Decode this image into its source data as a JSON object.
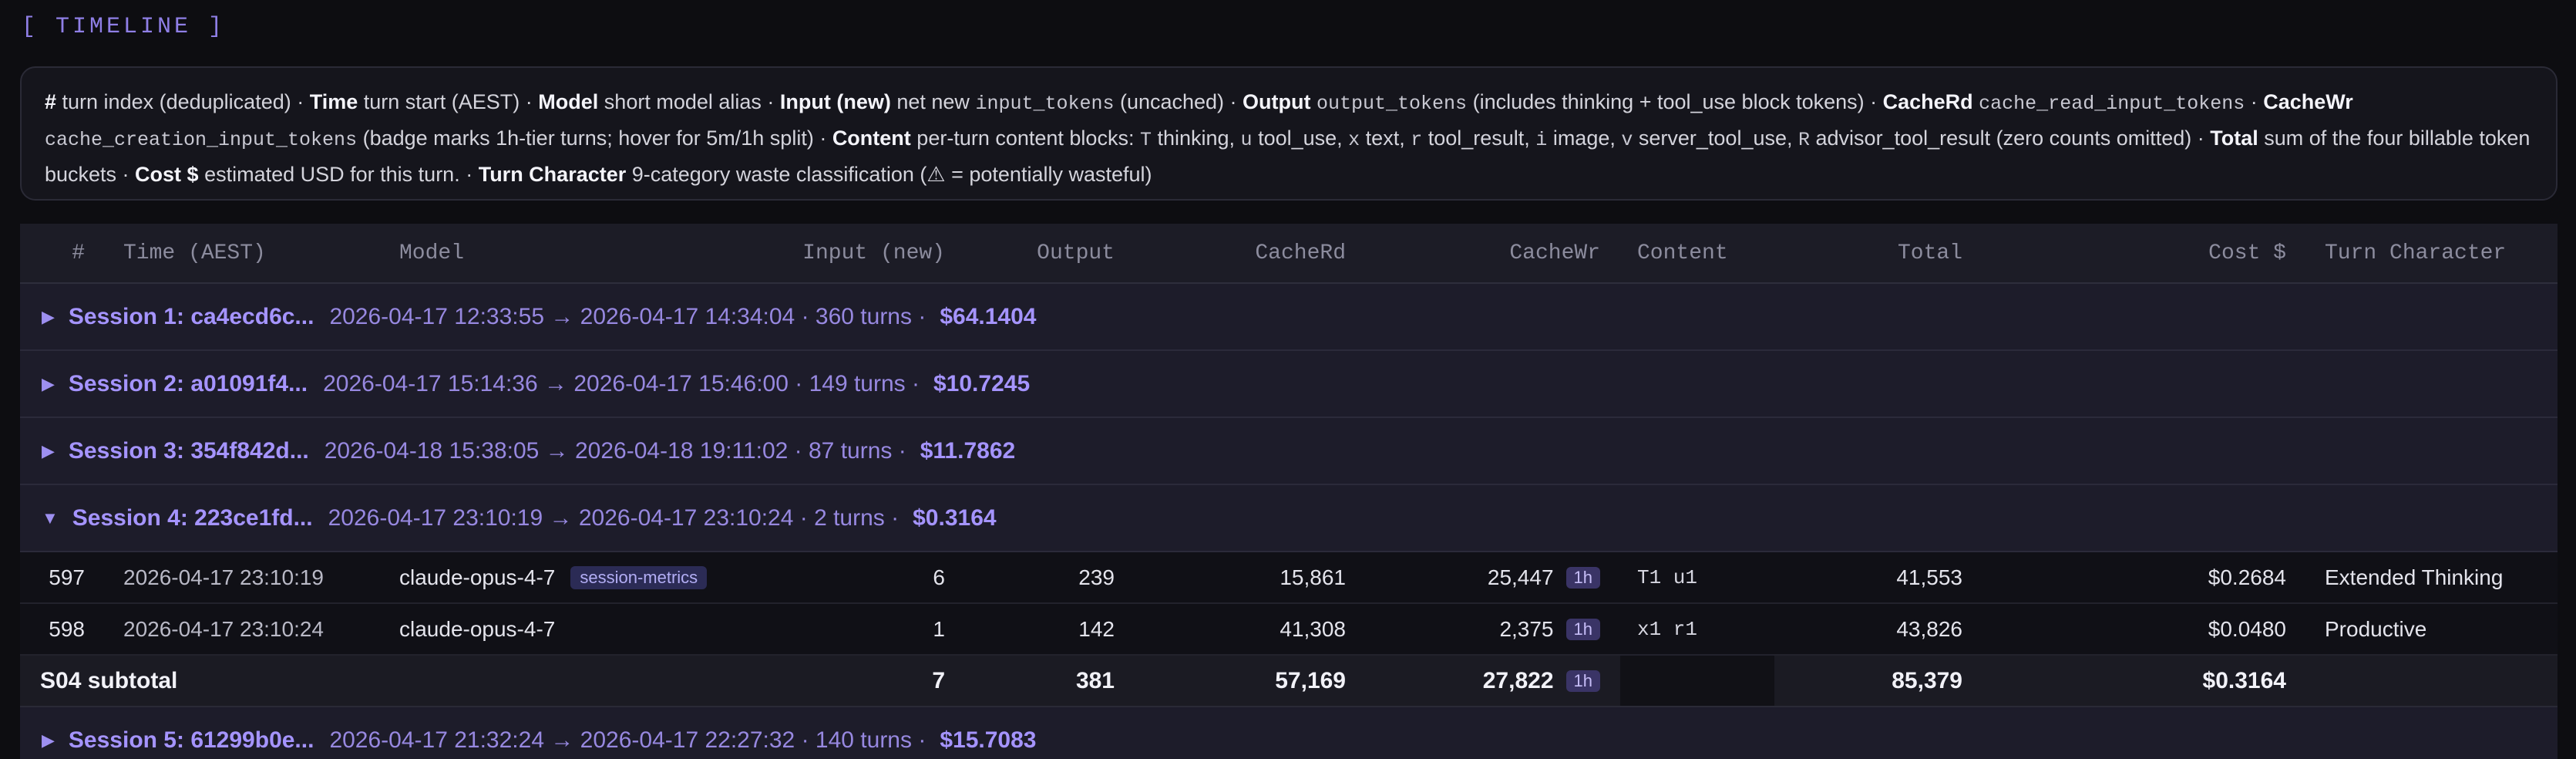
{
  "section": {
    "title": "[ TIMELINE ]"
  },
  "legend": {
    "parts": [
      {
        "b": "#",
        "t": " turn index (deduplicated) · "
      },
      {
        "b": "Time",
        "t": " turn start (AEST) · "
      },
      {
        "b": "Model",
        "t": " short model alias · "
      },
      {
        "b": "Input (new)",
        "t": " net new "
      },
      {
        "c": "input_tokens",
        "t": " (uncached) · "
      },
      {
        "b": "Output",
        "t": " "
      },
      {
        "c": "output_tokens",
        "t": " (includes thinking + tool_use block tokens) · "
      },
      {
        "b": "CacheRd",
        "t": " "
      },
      {
        "c": "cache_read_input_tokens",
        "t": " · "
      },
      {
        "b": "CacheWr",
        "t": " "
      },
      {
        "c": "cache_creation_input_tokens",
        "t": " (badge marks 1h-tier turns; hover for 5m/1h split) · "
      },
      {
        "b": "Content",
        "t": " per-turn content blocks: "
      },
      {
        "c": "T",
        "t": " thinking, "
      },
      {
        "c": "u",
        "t": " tool_use, "
      },
      {
        "c": "x",
        "t": " text, "
      },
      {
        "c": "r",
        "t": " tool_result, "
      },
      {
        "c": "i",
        "t": " image, "
      },
      {
        "c": "v",
        "t": " server_tool_use, "
      },
      {
        "c": "R",
        "t": " advisor_tool_result (zero counts omitted) · "
      },
      {
        "b": "Total",
        "t": " sum of the four billable token buckets · "
      },
      {
        "b": "Cost $",
        "t": " estimated USD for this turn. · "
      },
      {
        "b": "Turn Character",
        "t": " 9-category waste classification (⚠ = potentially wasteful)"
      }
    ]
  },
  "columns": {
    "idx": "#",
    "time": "Time (AEST)",
    "model": "Model",
    "input": "Input (new)",
    "output": "Output",
    "cacherd": "CacheRd",
    "cachewr": "CacheWr",
    "content": "Content",
    "total": "Total",
    "cost": "Cost $",
    "character": "Turn Character"
  },
  "sessions": [
    {
      "arrow": "▶",
      "name": "Session 1: ca4ecd6c...",
      "range": "2026-04-17 12:33:55 → 2026-04-17 14:34:04 · 360 turns ·",
      "cost": "$64.1404"
    },
    {
      "arrow": "▶",
      "name": "Session 2: a01091f4...",
      "range": "2026-04-17 15:14:36 → 2026-04-17 15:46:00 · 149 turns ·",
      "cost": "$10.7245"
    },
    {
      "arrow": "▶",
      "name": "Session 3: 354f842d...",
      "range": "2026-04-18 15:38:05 → 2026-04-18 19:11:02 · 87 turns ·",
      "cost": "$11.7862"
    },
    {
      "arrow": "▼",
      "name": "Session 4: 223ce1fd...",
      "range": "2026-04-17 23:10:19 → 2026-04-17 23:10:24 · 2 turns ·",
      "cost": "$0.3164"
    },
    {
      "arrow": "▶",
      "name": "Session 5: 61299b0e...",
      "range": "2026-04-17 21:32:24 → 2026-04-17 22:27:32 · 140 turns ·",
      "cost": "$15.7083"
    }
  ],
  "rows": [
    {
      "idx": "597",
      "time": "2026-04-17 23:10:19",
      "model": "claude-opus-4-7",
      "tag": "session-metrics",
      "input": "6",
      "output": "239",
      "cacherd": "15,861",
      "cachewr": "25,447",
      "badge": "1h",
      "content": "T1 u1",
      "total": "41,553",
      "cost": "$0.2684",
      "character": "Extended Thinking"
    },
    {
      "idx": "598",
      "time": "2026-04-17 23:10:24",
      "model": "claude-opus-4-7",
      "tag": "",
      "input": "1",
      "output": "142",
      "cacherd": "41,308",
      "cachewr": "2,375",
      "badge": "1h",
      "content": "x1 r1",
      "total": "43,826",
      "cost": "$0.0480",
      "character": "Productive"
    }
  ],
  "subtotal": {
    "label": "S04 subtotal",
    "input": "7",
    "output": "381",
    "cacherd": "57,169",
    "cachewr": "27,822",
    "badge": "1h",
    "total": "85,379",
    "cost": "$0.3164"
  }
}
